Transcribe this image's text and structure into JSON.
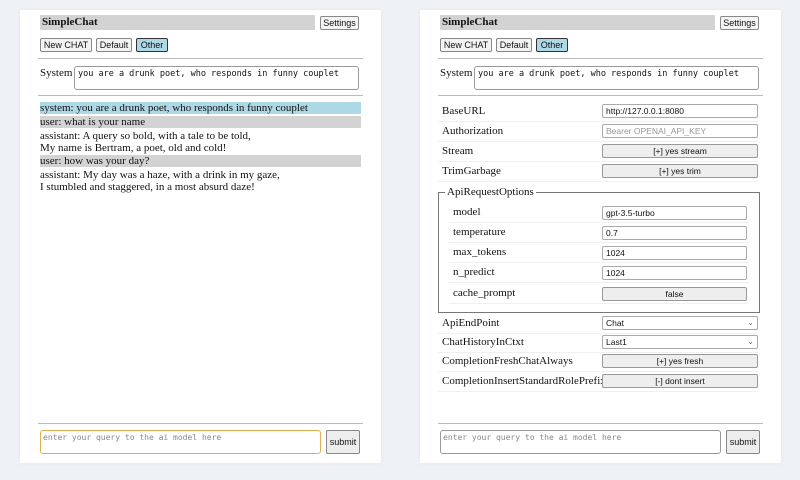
{
  "left": {
    "title": "SimpleChat",
    "settings_label": "Settings",
    "sessions": [
      "New CHAT",
      "Default",
      "Other"
    ],
    "system_label": "System",
    "system_value": "you are a drunk poet, who responds in funny couplet",
    "messages": [
      {
        "role": "system",
        "lines": [
          "system: you are a drunk poet, who responds in funny couplet"
        ]
      },
      {
        "role": "user",
        "lines": [
          "user: what is your name"
        ]
      },
      {
        "role": "assistant",
        "lines": [
          "assistant: A query so bold, with a tale to be told,",
          "My name is Bertram, a poet, old and cold!"
        ]
      },
      {
        "role": "user",
        "lines": [
          "user: how was your day?"
        ]
      },
      {
        "role": "assistant",
        "lines": [
          "assistant: My day was a haze, with a drink in my gaze,",
          "I stumbled and staggered, in a most absurd daze!"
        ]
      }
    ],
    "query_placeholder": "enter your query to the ai model here",
    "submit_label": "submit"
  },
  "right": {
    "title": "SimpleChat",
    "settings_label": "Settings",
    "sessions": [
      "New CHAT",
      "Default",
      "Other"
    ],
    "system_label": "System",
    "system_value": "you are a drunk poet, who responds in funny couplet",
    "settings": {
      "baseurl": {
        "label": "BaseURL",
        "value": "http://127.0.0.1:8080"
      },
      "authorization": {
        "label": "Authorization",
        "placeholder": "Bearer OPENAI_API_KEY"
      },
      "stream": {
        "label": "Stream",
        "value": "[+] yes stream"
      },
      "trimgarbage": {
        "label": "TrimGarbage",
        "value": "[+] yes trim"
      },
      "api_request_options": {
        "legend": "ApiRequestOptions",
        "model": {
          "label": "model",
          "value": "gpt-3.5-turbo"
        },
        "temperature": {
          "label": "temperature",
          "value": "0.7"
        },
        "max_tokens": {
          "label": "max_tokens",
          "value": "1024"
        },
        "n_predict": {
          "label": "n_predict",
          "value": "1024"
        },
        "cache_prompt": {
          "label": "cache_prompt",
          "value": "false"
        }
      },
      "api_endpoint": {
        "label": "ApiEndPoint",
        "value": "Chat"
      },
      "chat_history": {
        "label": "ChatHistoryInCtxt",
        "value": "Last1"
      },
      "completion_fresh": {
        "label": "CompletionFreshChatAlways",
        "value": "[+] yes fresh"
      },
      "completion_insert": {
        "label": "CompletionInsertStandardRolePrefix",
        "value": "[-] dont insert"
      }
    },
    "query_placeholder": "enter your query to the ai model here",
    "submit_label": "submit"
  },
  "colors": {
    "selected_session": "#add8e6",
    "system_msg": "#add8e6",
    "user_msg": "#d3d3d3",
    "focus_border": "#e0b050"
  }
}
